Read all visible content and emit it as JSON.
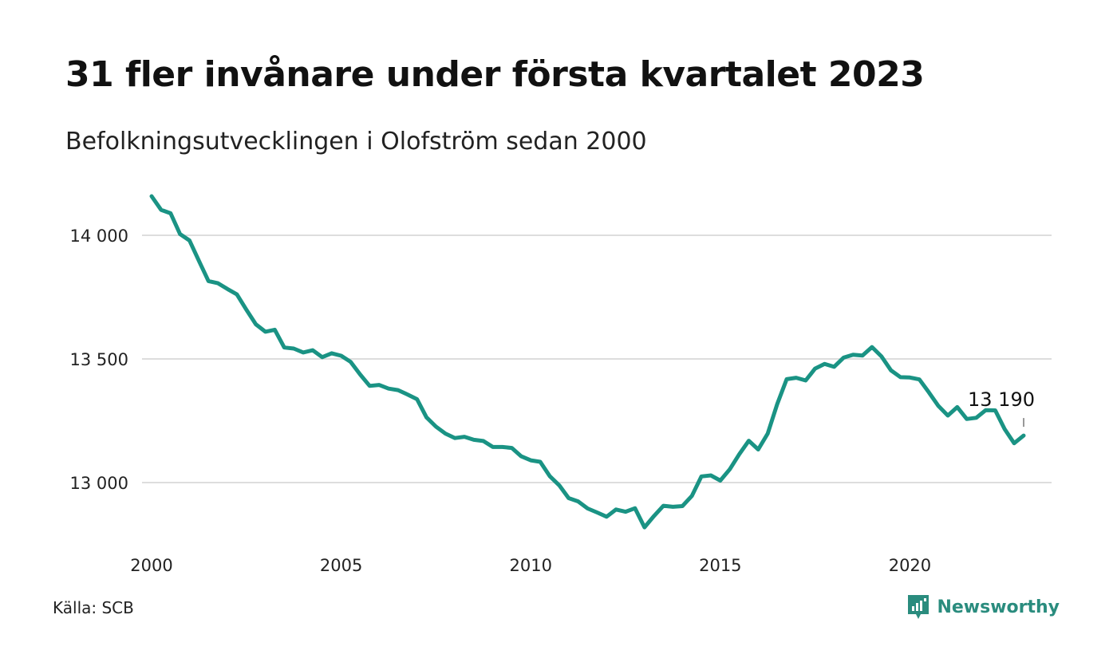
{
  "title": "31 fler invånare under första kvartalet 2023",
  "subtitle": "Befolkningsutvecklingen i Olofström sedan 2000",
  "source": "Källa: SCB",
  "logo": {
    "name": "Newsworthy",
    "icon": "newsworthy-logo-icon",
    "color": "#2a8c7e"
  },
  "colors": {
    "line": "#1a9384",
    "grid": "#dddddd"
  },
  "chart_data": {
    "type": "line",
    "title": "31 fler invånare under första kvartalet 2023",
    "subtitle": "Befolkningsutvecklingen i Olofström sedan 2000",
    "xlabel": "",
    "ylabel": "",
    "xlim": [
      2000,
      2023.25
    ],
    "ylim": [
      12800,
      14160
    ],
    "x_ticks": [
      2000,
      2005,
      2010,
      2015,
      2020
    ],
    "x_tick_labels": [
      "2000",
      "2005",
      "2010",
      "2015",
      "2020"
    ],
    "y_ticks": [
      13000,
      13500,
      14000
    ],
    "y_tick_labels": [
      "13 000",
      "13 500",
      "14 000"
    ],
    "grid": "horizontal",
    "end_label": "13 190",
    "series": [
      {
        "x": [
          2000.0,
          2000.25,
          2000.5,
          2000.75,
          2001.0,
          2001.25,
          2001.5,
          2001.75,
          2002.0,
          2002.25,
          2002.5,
          2002.75,
          2003.0,
          2003.25,
          2003.5,
          2003.75,
          2004.0,
          2004.25,
          2004.5,
          2004.75,
          2005.0,
          2005.25,
          2005.5,
          2005.75,
          2006.0,
          2006.25,
          2006.5,
          2006.75,
          2007.0,
          2007.25,
          2007.5,
          2007.75,
          2008.0,
          2008.25,
          2008.5,
          2008.75,
          2009.0,
          2009.25,
          2009.5,
          2009.75,
          2010.0,
          2010.25,
          2010.5,
          2010.75,
          2011.0,
          2011.25,
          2011.5,
          2011.75,
          2012.0,
          2012.25,
          2012.5,
          2012.75,
          2013.0,
          2013.25,
          2013.5,
          2013.75,
          2014.0,
          2014.25,
          2014.5,
          2014.75,
          2015.0,
          2015.25,
          2015.5,
          2015.75,
          2016.0,
          2016.25,
          2016.5,
          2016.75,
          2017.0,
          2017.25,
          2017.5,
          2017.75,
          2018.0,
          2018.25,
          2018.5,
          2018.75,
          2019.0,
          2019.25,
          2019.5,
          2019.75,
          2020.0,
          2020.25,
          2020.5,
          2020.75,
          2021.0,
          2021.25,
          2021.5,
          2021.75,
          2022.0,
          2022.25,
          2022.5,
          2022.75,
          2023.0
        ],
        "values": [
          14158,
          14103,
          14089,
          14005,
          13979,
          13896,
          13815,
          13806,
          13783,
          13761,
          13699,
          13640,
          13610,
          13618,
          13546,
          13542,
          13526,
          13535,
          13507,
          13523,
          13513,
          13488,
          13437,
          13391,
          13395,
          13380,
          13374,
          13356,
          13337,
          13264,
          13226,
          13198,
          13180,
          13185,
          13173,
          13168,
          13144,
          13144,
          13140,
          13106,
          13090,
          13084,
          13026,
          12989,
          12937,
          12924,
          12895,
          12879,
          12862,
          12891,
          12882,
          12896,
          12819,
          12865,
          12906,
          12902,
          12905,
          12946,
          13025,
          13029,
          13008,
          13054,
          13115,
          13169,
          13134,
          13198,
          13317,
          13418,
          13424,
          13413,
          13461,
          13480,
          13468,
          13505,
          13517,
          13514,
          13548,
          13510,
          13454,
          13426,
          13425,
          13417,
          13365,
          13310,
          13271,
          13305,
          13257,
          13262,
          13293,
          13292,
          13216,
          13159,
          13190
        ]
      }
    ]
  }
}
